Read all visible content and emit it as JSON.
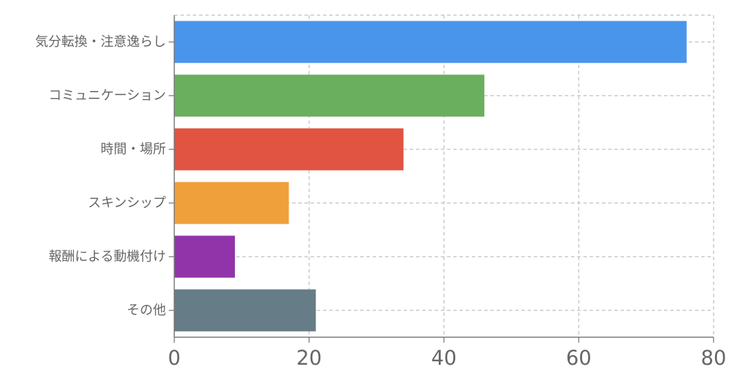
{
  "chart_data": {
    "type": "bar",
    "orientation": "horizontal",
    "categories": [
      "気分転換・注意逸らし",
      "コミュニケーション",
      "時間・場所",
      "スキンシップ",
      "報酬による動機付け",
      "その他"
    ],
    "values": [
      76,
      46,
      34,
      17,
      9,
      21
    ],
    "colors": [
      "#4a95ec",
      "#6aaf5e",
      "#e05441",
      "#f0a03a",
      "#9134a9",
      "#667c87"
    ],
    "xlim": [
      0,
      80
    ],
    "xticks": [
      0,
      20,
      40,
      60,
      80
    ],
    "grid": true
  }
}
